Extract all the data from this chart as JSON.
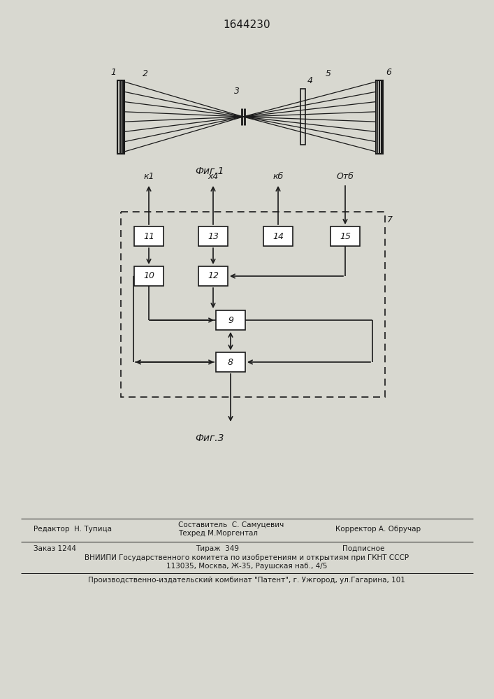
{
  "patent_number": "1644230",
  "fig1_caption": "Фиг.1",
  "fig3_caption": "Фиг.3",
  "bg_color": "#d8d8d0",
  "line_color": "#1a1a1a",
  "white": "#ffffff"
}
